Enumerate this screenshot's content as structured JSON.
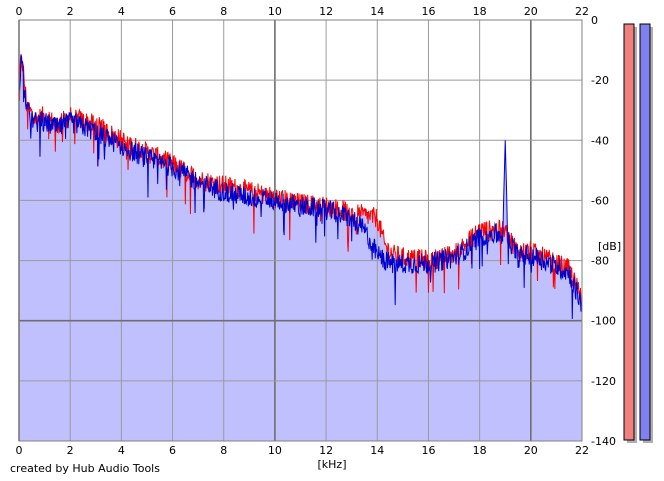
{
  "credit": "created by Hub Audio Tools",
  "colors": {
    "left_channel": "#ff0000",
    "right_channel": "#0000cc",
    "fill": "#c0c0ff",
    "grid": "#9a9a9a",
    "meter_left": "#f08080",
    "meter_right": "#8080f0"
  },
  "chart_data": {
    "type": "line",
    "xlabel": "[kHz]",
    "ylabel": "[dB]",
    "xlim": [
      0,
      22
    ],
    "ylim": [
      -140,
      0
    ],
    "x_ticks": [
      0,
      2,
      4,
      6,
      8,
      10,
      12,
      14,
      16,
      18,
      20,
      22
    ],
    "y_ticks": [
      0,
      -20,
      -40,
      -60,
      -80,
      -100,
      -120,
      -140
    ],
    "grid": true,
    "series": [
      {
        "color": "#ff0000",
        "x": [
          0,
          0.1,
          0.3,
          0.6,
          1,
          1.5,
          2,
          3,
          4,
          5,
          6,
          7,
          8,
          9,
          10,
          11,
          12,
          13,
          13.5,
          14,
          14.3,
          14.6,
          15,
          16,
          17,
          17.5,
          18,
          18.5,
          19,
          19.2,
          19.5,
          20,
          21,
          21.5,
          22
        ],
        "y": [
          -20,
          -12,
          -28,
          -33,
          -32,
          -35,
          -32,
          -35,
          -40,
          -44,
          -48,
          -53,
          -55,
          -57,
          -59,
          -61,
          -62,
          -64,
          -65,
          -66,
          -75,
          -78,
          -79,
          -80,
          -78,
          -74,
          -70,
          -70,
          -70,
          -73,
          -77,
          -77,
          -81,
          -83,
          -93
        ]
      },
      {
        "color": "#0000cc",
        "x": [
          0,
          0.1,
          0.3,
          0.6,
          1,
          1.5,
          2,
          3,
          4,
          5,
          6,
          7,
          8,
          9,
          10,
          11,
          12,
          13,
          13.5,
          14,
          14.3,
          14.6,
          15,
          16,
          17,
          17.5,
          18,
          18.5,
          18.9,
          19.0,
          19.1,
          19.5,
          20,
          21,
          21.5,
          22
        ],
        "y": [
          -22,
          -12,
          -30,
          -34,
          -34,
          -36,
          -34,
          -37,
          -42,
          -46,
          -49,
          -54,
          -57,
          -59,
          -60,
          -62,
          -63,
          -66,
          -70,
          -78,
          -80,
          -81,
          -81,
          -81,
          -79,
          -76,
          -72,
          -71,
          -72,
          -40,
          -72,
          -79,
          -78,
          -82,
          -84,
          -95
        ]
      }
    ],
    "level_meters": [
      {
        "channel": "left",
        "level_db": -140
      },
      {
        "channel": "right",
        "level_db": -140
      }
    ]
  }
}
